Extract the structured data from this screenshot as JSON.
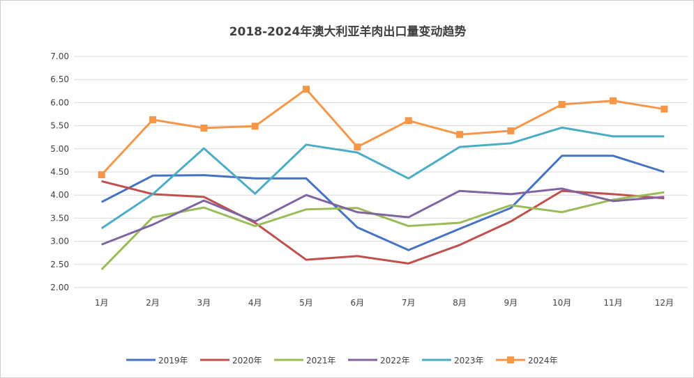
{
  "chart_data": {
    "type": "line",
    "title": "2018-2024年澳大利亚羊肉出口量变动趋势",
    "categories": [
      "1月",
      "2月",
      "3月",
      "4月",
      "5月",
      "6月",
      "7月",
      "8月",
      "9月",
      "10月",
      "11月",
      "12月"
    ],
    "ylim": [
      2.0,
      7.0
    ],
    "yticks": [
      "2.00",
      "2.50",
      "3.00",
      "3.50",
      "4.00",
      "4.50",
      "5.00",
      "5.50",
      "6.00",
      "6.50",
      "7.00"
    ],
    "grid": true,
    "legend": "bottom",
    "series": [
      {
        "name": "2019年",
        "color": "#4472C4",
        "marker": "none",
        "values": [
          3.85,
          4.42,
          4.43,
          4.36,
          4.36,
          3.3,
          2.81,
          3.27,
          3.72,
          4.85,
          4.85,
          4.5
        ]
      },
      {
        "name": "2020年",
        "color": "#C0504D",
        "marker": "none",
        "values": [
          4.3,
          4.02,
          3.96,
          3.4,
          2.6,
          2.68,
          2.52,
          2.92,
          3.43,
          4.09,
          4.02,
          3.93
        ]
      },
      {
        "name": "2021年",
        "color": "#9BBB59",
        "marker": "none",
        "values": [
          2.39,
          3.52,
          3.73,
          3.33,
          3.69,
          3.72,
          3.33,
          3.4,
          3.78,
          3.63,
          3.9,
          4.06
        ]
      },
      {
        "name": "2022年",
        "color": "#8064A2",
        "marker": "none",
        "values": [
          2.93,
          3.36,
          3.88,
          3.43,
          4.0,
          3.63,
          3.52,
          4.09,
          4.02,
          4.14,
          3.87,
          3.96
        ]
      },
      {
        "name": "2023年",
        "color": "#4BACC6",
        "marker": "none",
        "values": [
          3.28,
          4.02,
          5.01,
          4.03,
          5.09,
          4.92,
          4.36,
          5.04,
          5.12,
          5.46,
          5.27,
          5.27
        ]
      },
      {
        "name": "2024年",
        "color": "#F79646",
        "marker": "square",
        "values": [
          4.44,
          5.63,
          5.45,
          5.49,
          6.29,
          5.04,
          5.61,
          5.31,
          5.39,
          5.96,
          6.04,
          5.86
        ]
      }
    ]
  }
}
